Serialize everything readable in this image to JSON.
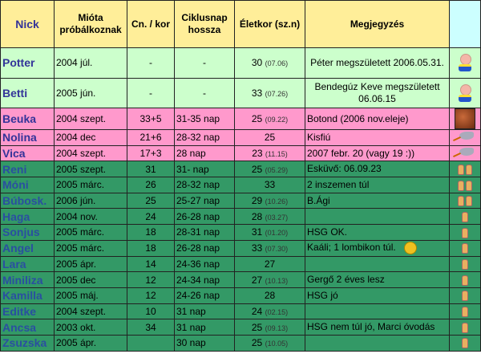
{
  "headers": {
    "nick": "Nick",
    "since_line1": "Mióta",
    "since_line2": "próbálkoznak",
    "cycle_count": "Cn. / kor",
    "cycle_len_line1": "Ciklusnap",
    "cycle_len_line2": "hossza",
    "age": "Életkor (sz.n)",
    "note": "Megjegyzés"
  },
  "colors": {
    "header": "#ffee99",
    "born": "#ccffcc",
    "pregnant": "#ff99cc",
    "trying": "#339966",
    "icon_column": "#ccffff",
    "nick": "#333399"
  },
  "rows": [
    {
      "nick": "Potter",
      "since": "2004 júl.",
      "cn": "-",
      "cycle": "-",
      "age": "30",
      "bday": "(07.06)",
      "note": "Péter megszületett 2006.05.31.",
      "icon": "baby-icon",
      "group": "born"
    },
    {
      "nick": "Betti",
      "since": "2005 jún.",
      "cn": "-",
      "cycle": "-",
      "age": "33",
      "bday": "(07.26)",
      "note": "Bendegúz Keve megszületett 06.06.15",
      "icon": "baby-icon",
      "group": "born"
    },
    {
      "nick": "Beuka",
      "since": "2004 szept.",
      "cn": "33+5",
      "cycle": "31-35 nap",
      "age": "25",
      "bday": "(09.22)",
      "note": "Botond (2006 nov.eleje)",
      "icon": "ultrasound-photo-icon",
      "group": "pregnant"
    },
    {
      "nick": "Nolina",
      "since": "2004 dec",
      "cn": "21+6",
      "cycle": "28-32 nap",
      "age": "25",
      "bday": "",
      "note": "Kisfiú",
      "icon": "stork-icon",
      "group": "pregnant"
    },
    {
      "nick": "Vica",
      "since": "2004 szept.",
      "cn": "17+3",
      "cycle": "28 nap",
      "age": "23",
      "bday": "(11.15)",
      "note": "2007 febr. 20 (vagy 19 :))",
      "icon": "stork-icon",
      "group": "pregnant"
    },
    {
      "nick": "Reni",
      "since": "2005 szept.",
      "cn": "31",
      "cycle": "31- nap",
      "age": "25",
      "bday": "(05.29)",
      "note": "Esküvő: 06.09.23",
      "icon": "crossed-fingers-double-icon",
      "group": "trying"
    },
    {
      "nick": "Móni",
      "since": "2005 márc.",
      "cn": "26",
      "cycle": "28-32 nap",
      "age": "33",
      "bday": "",
      "note": "2 inszemen túl",
      "icon": "crossed-fingers-double-icon",
      "group": "trying"
    },
    {
      "nick": "Búbosk.",
      "since": "2006 jún.",
      "cn": "25",
      "cycle": "25-27 nap",
      "age": "29",
      "bday": "(10.26)",
      "note": "B.Ági",
      "icon": "crossed-fingers-double-icon",
      "group": "trying"
    },
    {
      "nick": "Haga",
      "since": "2004 nov.",
      "cn": "24",
      "cycle": "26-28 nap",
      "age": "28",
      "bday": "(03.27)",
      "note": "",
      "icon": "crossed-fingers-icon",
      "group": "trying"
    },
    {
      "nick": "Sonjus",
      "since": "2005 márc.",
      "cn": "18",
      "cycle": "28-31 nap",
      "age": "31",
      "bday": "(01.20)",
      "note": "HSG OK.",
      "icon": "crossed-fingers-icon",
      "group": "trying"
    },
    {
      "nick": "Angel",
      "since": "2005 márc.",
      "cn": "18",
      "cycle": "26-28 nap",
      "age": "33",
      "bday": "(07.30)",
      "note": "Kaáli; 1 lombikon túl.",
      "icon": "crossed-fingers-icon",
      "note_icon": "sad-smiley-icon",
      "group": "trying"
    },
    {
      "nick": "Lara",
      "since": "2005 ápr.",
      "cn": "14",
      "cycle": "24-36 nap",
      "age": "27",
      "bday": "",
      "note": "",
      "icon": "crossed-fingers-icon",
      "group": "trying"
    },
    {
      "nick": "Miniliza",
      "since": "2005 dec",
      "cn": "12",
      "cycle": "24-34 nap",
      "age": "27",
      "bday": "(10.13)",
      "note": "Gergő 2 éves lesz",
      "icon": "crossed-fingers-icon",
      "group": "trying"
    },
    {
      "nick": "Kamilla",
      "since": "2005 máj.",
      "cn": "12",
      "cycle": "24-26 nap",
      "age": "28",
      "bday": "",
      "note": "HSG jó",
      "icon": "crossed-fingers-icon",
      "group": "trying"
    },
    {
      "nick": "Editke",
      "since": "2004 szept.",
      "cn": "10",
      "cycle": "31 nap",
      "age": "24",
      "bday": "(02.15)",
      "note": "",
      "icon": "crossed-fingers-icon",
      "group": "trying"
    },
    {
      "nick": "Ancsa",
      "since": "2003 okt.",
      "cn": "34",
      "cycle": "31 nap",
      "age": "25",
      "bday": "(09.13)",
      "note": "HSG nem túl jó, Marci óvodás",
      "icon": "crossed-fingers-icon",
      "group": "trying"
    },
    {
      "nick": "Zsuzska",
      "since": "2005 ápr.",
      "cn": "",
      "cycle": "30 nap",
      "age": "25",
      "bday": "(10.05)",
      "note": "",
      "icon": "crossed-fingers-icon",
      "group": "trying"
    }
  ]
}
